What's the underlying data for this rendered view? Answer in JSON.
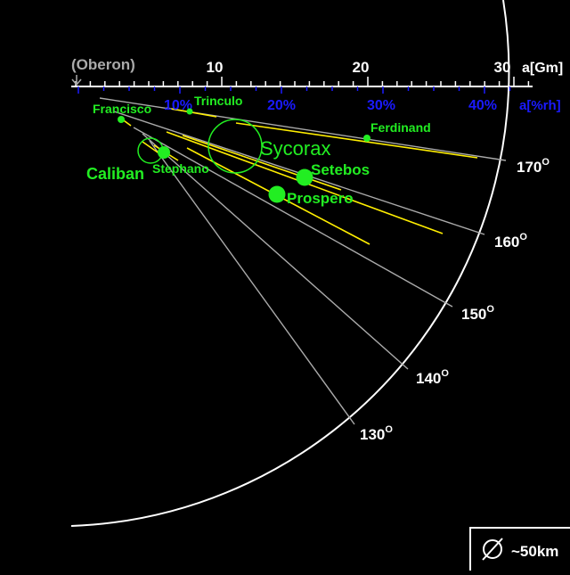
{
  "top_axis": {
    "unit_label": "a[Gm]",
    "reference_label": "(Oberon)",
    "ticks": [
      "10",
      "20",
      "30"
    ]
  },
  "pct_axis": {
    "unit_label": "a[%rh]",
    "ticks": [
      "10%",
      "20%",
      "30%",
      "40%"
    ]
  },
  "angle_labels": [
    "170",
    "160",
    "150",
    "140",
    "130"
  ],
  "degree_symbol": "O",
  "scale_box": {
    "symbol": "∅",
    "label": "~50km"
  },
  "moons": [
    {
      "name": "Francisco",
      "a_gm": 4.3,
      "incl_deg": 147,
      "size": "small"
    },
    {
      "name": "Trinculo",
      "a_gm": 8.5,
      "incl_deg": 167,
      "size": "small"
    },
    {
      "name": "Caliban",
      "a_gm": 7.2,
      "incl_deg": 141,
      "size": "large-ring"
    },
    {
      "name": "Stephano",
      "a_gm": 8.0,
      "incl_deg": 144,
      "size": "medium"
    },
    {
      "name": "Sycorax",
      "a_gm": 12.2,
      "incl_deg": 159,
      "size": "large-ring"
    },
    {
      "name": "Setebos",
      "a_gm": 17.4,
      "incl_deg": 158,
      "size": "medium-large"
    },
    {
      "name": "Prospero",
      "a_gm": 16.3,
      "incl_deg": 152,
      "size": "medium-large"
    },
    {
      "name": "Ferdinand",
      "a_gm": 20.9,
      "incl_deg": 169,
      "size": "small"
    }
  ],
  "colors": {
    "background": "#000000",
    "moon": "#22ee22",
    "orbit": "#ffee00",
    "grid": "#aaaaaa",
    "pct_axis": "#1a1aff",
    "reference": "#aaaaaa"
  }
}
